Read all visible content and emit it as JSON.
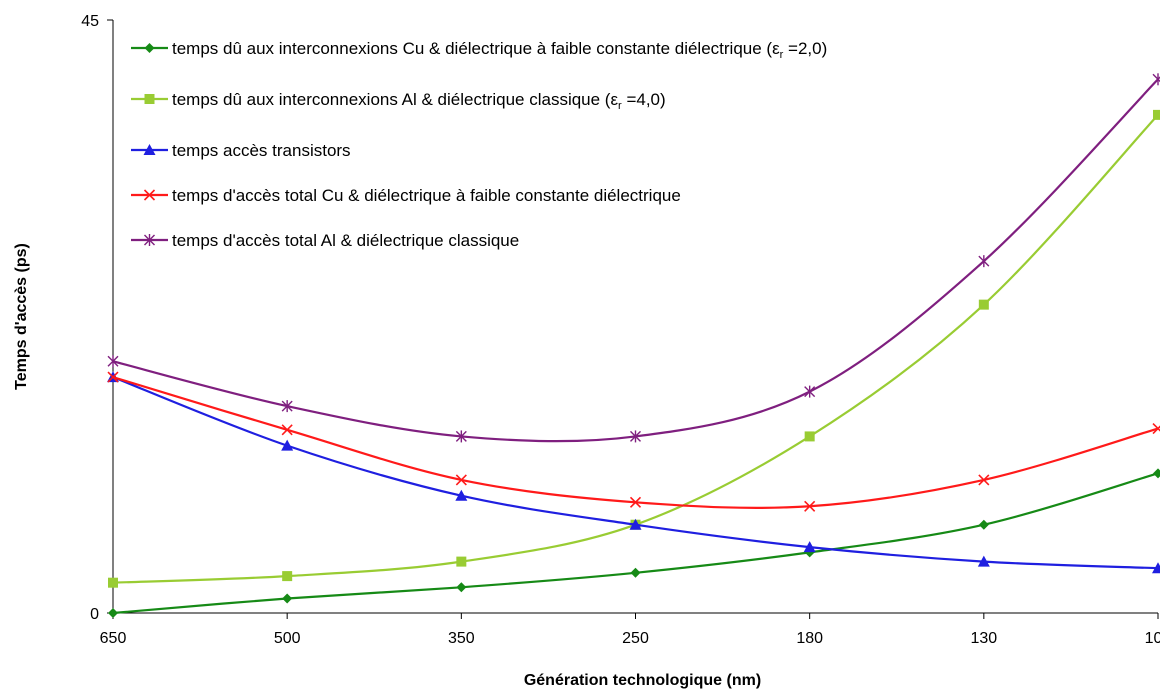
{
  "chart_data": {
    "type": "line",
    "xlabel": "Génération technologique (nm)",
    "ylabel": "Temps d'accès (ps)",
    "categories": [
      "650",
      "500",
      "350",
      "250",
      "180",
      "130",
      "100"
    ],
    "ylim": [
      0,
      45
    ],
    "yticks": [
      "0",
      "45"
    ],
    "grid": false,
    "legend_position": "top-left",
    "series": [
      {
        "name": "temps dû aux interconnexions Cu & diélectrique à faible constante diélectrique (εr =2,0)",
        "legend_main": "temps dû aux interconnexions Cu & diélectrique à faible constante diélectrique (ε",
        "legend_sub": "r",
        "legend_tail": " =2,0)",
        "color": "#168A16",
        "marker": "diamond",
        "values": [
          0,
          1.1,
          1.95,
          3.05,
          4.6,
          6.7,
          10.6
        ]
      },
      {
        "name": "temps dû aux interconnexions Al & diélectrique classique (εr =4,0)",
        "legend_main": "temps dû aux interconnexions Al & diélectrique classique (ε",
        "legend_sub": "r",
        "legend_tail": " =4,0)",
        "color": "#99CC33",
        "marker": "square",
        "values": [
          2.3,
          2.8,
          3.9,
          6.7,
          13.4,
          23.4,
          37.8
        ]
      },
      {
        "name": "temps accès transistors",
        "legend_main": "temps accès transistors",
        "color": "#1F1FE0",
        "marker": "triangle",
        "values": [
          17.9,
          12.7,
          8.9,
          6.7,
          5.0,
          3.9,
          3.4
        ]
      },
      {
        "name": "temps d'accès total Cu &  diélectrique à faible constante diélectrique",
        "legend_main": "temps d'accès total Cu &  diélectrique à faible constante diélectrique",
        "color": "#FF1A1A",
        "marker": "x",
        "values": [
          17.9,
          13.9,
          10.1,
          8.4,
          8.1,
          10.1,
          14.0
        ]
      },
      {
        "name": "temps d'accès total Al & diélectrique classique",
        "legend_main": "temps d'accès total Al & diélectrique classique",
        "color": "#7F1F7F",
        "marker": "star",
        "values": [
          19.1,
          15.7,
          13.4,
          13.4,
          16.8,
          26.7,
          40.5
        ]
      }
    ]
  }
}
